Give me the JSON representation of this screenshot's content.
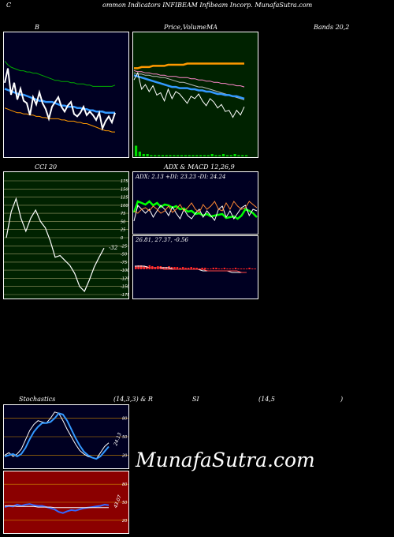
{
  "header": {
    "c_letter": "C",
    "title": "ommon  Indicators INFIBEAM Infibeam Incorp. MunafaSutra.com"
  },
  "labels": {
    "bb": "B",
    "price": "Price,",
    "volume": "Volume",
    "ma": "MA",
    "bands": "Bands 20,2",
    "cci": "CCI 20",
    "adx_macd": "ADX  & MACD 12,26,9",
    "adx_readout": "ADX: 2.13  +DI: 23.23 -DI: 24.24",
    "macd_readout": "26.81,  27.37,  -0.56",
    "stoch_a": "Stochastics",
    "stoch_b": "(14,3,3) & R",
    "stoch_c": "SI",
    "stoch_d": "(14,5",
    "stoch_e": ")",
    "stoch_value": "24.13",
    "rsi_value": "43.07",
    "watermark": "MunafaSutra.com"
  },
  "colors": {
    "bb_bg": "#000022",
    "price_bg": "#002200",
    "cci_bg": "#002200",
    "adx_bg": "#000022",
    "stoch_bg": "#000022",
    "rsi_bg": "#8B0000",
    "accent_blue": "#3399ff",
    "accent_orange": "#ff9900",
    "accent_green": "#00dd00"
  },
  "chart_data": [
    {
      "type": "line",
      "name": "bollinger",
      "ylim": [
        0,
        100
      ],
      "series": [
        {
          "name": "upper",
          "color": "#00aa00",
          "values": [
            78,
            75,
            73,
            72,
            71,
            70,
            70,
            69,
            69,
            68,
            68,
            67,
            66,
            65,
            64,
            63,
            62,
            62,
            61,
            61,
            61,
            60,
            60,
            59,
            59,
            59,
            58,
            58,
            57,
            57,
            57,
            57,
            57,
            57,
            57,
            58
          ]
        },
        {
          "name": "middle",
          "color": "#3399ff",
          "values": [
            55,
            54,
            53,
            52,
            51,
            50,
            50,
            49,
            48,
            47,
            46,
            45,
            45,
            44,
            44,
            44,
            43,
            42,
            41,
            41,
            40,
            40,
            40,
            39,
            39,
            38,
            38,
            37,
            37,
            36,
            36,
            36,
            35,
            35,
            35,
            35
          ]
        },
        {
          "name": "lower",
          "color": "#ff9900",
          "values": [
            39,
            38,
            37,
            36,
            35,
            35,
            34,
            34,
            33,
            33,
            32,
            32,
            31,
            31,
            30,
            30,
            30,
            30,
            29,
            29,
            28,
            28,
            28,
            27,
            27,
            26,
            26,
            25,
            24,
            23,
            22,
            21,
            20,
            20,
            19,
            19
          ]
        },
        {
          "name": "price",
          "color": "#ffffff",
          "values": [
            60,
            72,
            50,
            60,
            46,
            55,
            45,
            43,
            33,
            48,
            42,
            52,
            43,
            38,
            30,
            40,
            44,
            48,
            40,
            36,
            41,
            44,
            34,
            32,
            35,
            40,
            33,
            36,
            33,
            29,
            35,
            22,
            28,
            32,
            27,
            35
          ]
        }
      ]
    },
    {
      "type": "line",
      "name": "price_ma",
      "ylim": [
        0,
        100
      ],
      "series": [
        {
          "name": "ma_orange",
          "color": "#ff9900",
          "values": [
            70,
            70,
            71,
            71,
            71,
            72,
            72,
            72,
            72,
            73,
            73,
            73,
            73,
            73,
            74,
            74,
            74,
            74,
            74,
            74,
            74,
            74,
            74,
            74,
            74,
            74,
            74,
            74,
            74,
            74
          ]
        },
        {
          "name": "ma_pink",
          "color": "#ff88cc",
          "values": [
            68,
            67,
            67,
            66,
            66,
            65,
            65,
            64,
            64,
            63,
            63,
            63,
            62,
            62,
            62,
            61,
            61,
            60,
            60,
            59,
            59,
            58,
            58,
            57,
            57,
            56,
            56,
            55,
            55,
            54
          ]
        },
        {
          "name": "ma_gray",
          "color": "#bbbbbb",
          "values": [
            66,
            65,
            65,
            64,
            64,
            63,
            63,
            62,
            62,
            61,
            60,
            59,
            58,
            58,
            57,
            56,
            55,
            54,
            54,
            53,
            52,
            51,
            50,
            49,
            48,
            47,
            46,
            45,
            44,
            43
          ]
        },
        {
          "name": "ma_blue",
          "color": "#3399ff",
          "values": [
            64,
            63,
            62,
            61,
            60,
            59,
            58,
            57,
            56,
            55,
            54,
            54,
            53,
            53,
            53,
            52,
            52,
            51,
            51,
            50,
            50,
            49,
            48,
            48,
            47,
            47,
            46,
            46,
            45,
            44
          ]
        },
        {
          "name": "price",
          "color": "#ffffff",
          "values": [
            60,
            66,
            52,
            56,
            50,
            55,
            47,
            49,
            42,
            52,
            44,
            50,
            48,
            44,
            40,
            46,
            44,
            48,
            42,
            38,
            44,
            41,
            36,
            39,
            33,
            34,
            28,
            34,
            30,
            37
          ]
        }
      ],
      "volume": [
        9,
        4,
        2,
        2,
        1,
        1,
        1,
        1,
        1,
        1,
        1,
        1,
        1,
        1,
        1,
        1,
        1,
        1,
        1,
        1,
        2,
        1,
        1,
        2,
        1,
        1,
        2,
        1,
        1,
        1
      ]
    },
    {
      "type": "line",
      "name": "cci",
      "ylim": [
        -175,
        175
      ],
      "yticks": [
        175,
        150,
        125,
        100,
        75,
        50,
        25,
        0,
        -25,
        -50,
        -75,
        -100,
        -125,
        -150,
        -175
      ],
      "value_label": "-32",
      "values": [
        0,
        80,
        120,
        60,
        20,
        60,
        85,
        50,
        30,
        -10,
        -60,
        -55,
        -70,
        -85,
        -110,
        -150,
        -165,
        -130,
        -90,
        -60,
        -32
      ]
    },
    {
      "type": "line",
      "name": "adx",
      "ylim": [
        0,
        60
      ],
      "series": [
        {
          "name": "adx",
          "color": "#00ff00",
          "values": [
            26,
            40,
            38,
            36,
            40,
            35,
            38,
            33,
            36,
            35,
            32,
            34,
            30,
            31,
            27,
            28,
            24,
            25,
            22,
            24,
            21,
            22,
            23,
            24,
            19,
            20,
            21,
            18,
            22,
            30,
            28,
            25,
            20
          ]
        },
        {
          "name": "plus_di",
          "color": "#ffffff",
          "values": [
            15,
            35,
            30,
            25,
            30,
            20,
            28,
            35,
            30,
            22,
            33,
            25,
            18,
            30,
            22,
            18,
            25,
            30,
            20,
            28,
            22,
            16,
            30,
            34,
            20,
            28,
            18,
            25,
            32,
            35,
            22,
            30,
            28
          ]
        },
        {
          "name": "minus_di",
          "color": "#ff8833",
          "values": [
            28,
            25,
            30,
            32,
            28,
            34,
            30,
            25,
            28,
            34,
            26,
            30,
            36,
            28,
            32,
            38,
            30,
            26,
            36,
            30,
            34,
            40,
            30,
            28,
            38,
            30,
            40,
            34,
            30,
            32,
            40,
            36,
            32
          ]
        }
      ]
    },
    {
      "type": "bar",
      "name": "macd",
      "ylim": [
        -10,
        10
      ],
      "histogram": [
        4,
        5,
        5,
        4,
        4,
        5,
        4,
        3,
        4,
        4,
        3,
        3,
        4,
        3,
        3,
        3,
        2,
        3,
        2,
        2,
        3,
        2,
        2,
        1,
        2,
        2,
        1,
        1,
        2,
        2,
        1,
        1,
        2,
        1,
        1,
        1,
        2,
        1,
        1,
        1,
        1,
        2,
        1,
        1
      ],
      "series": [
        {
          "name": "macd",
          "color": "#ffffff",
          "values": [
            2,
            2,
            2,
            1,
            1,
            1,
            1,
            1,
            0,
            0,
            0,
            0,
            0,
            0,
            -1,
            -1,
            -1,
            -1,
            -1,
            -1,
            -2,
            -2,
            -2,
            -2
          ]
        },
        {
          "name": "signal",
          "color": "#ff4444",
          "values": [
            1,
            1,
            1,
            1,
            1,
            1,
            0,
            0,
            0,
            0,
            0,
            0,
            0,
            0,
            0,
            -1,
            -1,
            -1,
            -1,
            -1,
            -1,
            -1,
            -2,
            -2
          ]
        }
      ]
    },
    {
      "type": "line",
      "name": "stochastics",
      "ylim": [
        0,
        100
      ],
      "yticks": [
        80,
        50,
        20
      ],
      "series": [
        {
          "name": "k",
          "color": "#ffffff",
          "values": [
            20,
            24,
            18,
            22,
            30,
            45,
            60,
            70,
            76,
            74,
            72,
            80,
            90,
            88,
            76,
            62,
            50,
            38,
            28,
            22,
            18,
            16,
            14,
            24,
            34,
            40
          ]
        },
        {
          "name": "d",
          "color": "#3399ff",
          "values": [
            18,
            20,
            22,
            18,
            22,
            32,
            46,
            58,
            66,
            72,
            72,
            74,
            80,
            88,
            86,
            76,
            62,
            48,
            36,
            26,
            20,
            16,
            14,
            18,
            26,
            34
          ]
        }
      ]
    },
    {
      "type": "line",
      "name": "rsi",
      "ylim": [
        0,
        100
      ],
      "yticks": [
        80,
        50,
        20
      ],
      "series": [
        {
          "name": "rsi",
          "color": "#3366ff",
          "values": [
            42,
            44,
            43,
            46,
            44,
            46,
            47,
            45,
            44,
            44,
            42,
            40,
            38,
            34,
            32,
            35,
            37,
            36,
            38,
            40,
            41,
            42,
            43,
            44,
            46,
            45
          ]
        },
        {
          "name": "mid",
          "color": "#ffffff",
          "values": [
            44,
            44,
            44,
            43,
            43,
            43,
            43,
            43,
            42,
            42,
            42,
            42,
            41,
            41,
            41,
            41,
            41,
            41,
            41,
            41,
            41,
            41,
            41,
            41,
            41,
            41
          ]
        }
      ]
    }
  ]
}
